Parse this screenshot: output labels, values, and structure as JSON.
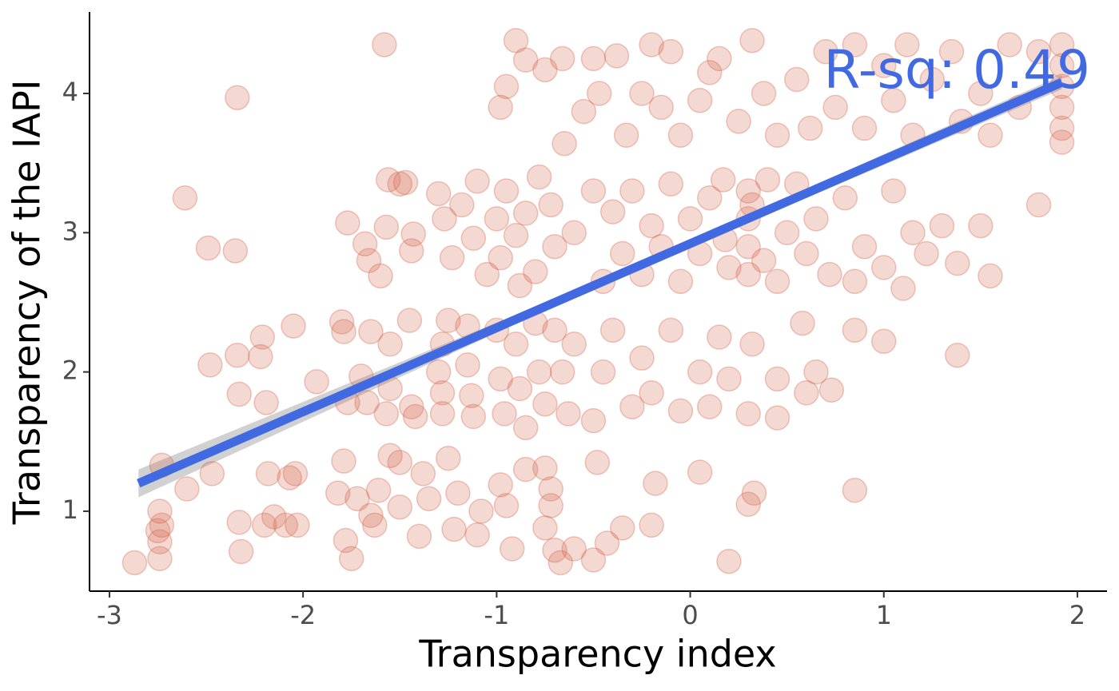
{
  "chart_data": {
    "type": "scatter",
    "x_label": "Transparency index",
    "y_label": "Transparency of the IAPI",
    "annotation": "R-sq: 0.49",
    "xlim": [
      -3.103,
      2.153
    ],
    "ylim": [
      0.426,
      4.585
    ],
    "xticks": [
      -3,
      -2,
      -1,
      0,
      1,
      2
    ],
    "yticks": [
      1,
      2,
      3,
      4
    ],
    "grid": false,
    "point_color": "#d4634a",
    "fit_color": "#4169e1",
    "band_color": "#bdbdbd",
    "x": [
      -2.87,
      -2.74,
      -2.74,
      -2.75,
      -2.73,
      -2.74,
      -2.73,
      -2.6,
      -2.47,
      -2.33,
      -2.32,
      -2.2,
      -2.15,
      -2.18,
      -2.07,
      -2.03,
      -2.04,
      -2.09,
      -2.48,
      -2.33,
      -2.34,
      -2.22,
      -2.21,
      -2.19,
      -2.05,
      -1.93,
      -2.34,
      -2.49,
      -2.35,
      -2.61,
      -1.58,
      -1.8,
      -1.79,
      -1.77,
      -1.7,
      -1.67,
      -1.65,
      -1.79,
      -1.78,
      -1.75,
      -1.82,
      -1.72,
      -1.65,
      -1.63,
      -1.61,
      -1.77,
      -1.68,
      -1.66,
      -1.6,
      -1.57,
      -1.56,
      -1.47,
      -1.43,
      -1.44,
      -1.5,
      -1.55,
      -1.55,
      -1.57,
      -1.55,
      -1.5,
      -1.5,
      -1.45,
      -1.44,
      -1.42,
      -1.4,
      -1.38,
      -1.35,
      -1.3,
      -1.28,
      -1.28,
      -1.28,
      -1.25,
      -1.25,
      -1.22,
      -1.2,
      -1.15,
      -1.15,
      -1.13,
      -1.12,
      -1.1,
      -1.08,
      -1.3,
      -1.27,
      -1.23,
      -1.18,
      -1.12,
      -1.1,
      -1.05,
      -1.0,
      -0.98,
      -0.95,
      -0.9,
      -0.88,
      -0.85,
      -0.8,
      -0.78,
      -0.72,
      -0.7,
      -1.0,
      -0.98,
      -0.96,
      -0.9,
      -0.88,
      -0.85,
      -0.8,
      -0.78,
      -0.75,
      -0.7,
      -0.66,
      -0.63,
      -0.98,
      -0.95,
      -0.92,
      -0.85,
      -0.75,
      -0.72,
      -0.72,
      -0.75,
      -0.7,
      -0.67,
      -0.6,
      -0.5,
      -0.48,
      -0.43,
      -0.35,
      -0.2,
      -0.18,
      -0.98,
      -0.95,
      -0.9,
      -0.85,
      -0.75,
      -0.66,
      -0.65,
      -0.55,
      -0.5,
      -0.47,
      -0.38,
      -0.33,
      -0.25,
      -0.2,
      -0.15,
      -0.1,
      -0.05,
      0.05,
      0.1,
      0.15,
      0.25,
      0.32,
      0.38,
      0.45,
      0.55,
      0.62,
      0.7,
      0.75,
      0.85,
      0.9,
      1.0,
      1.05,
      1.12,
      1.15,
      1.25,
      1.35,
      1.4,
      1.5,
      1.55,
      1.65,
      1.7,
      1.8,
      1.92,
      1.92,
      1.92,
      1.92,
      1.92,
      1.92,
      1.8,
      -0.6,
      -0.5,
      -0.45,
      -0.4,
      -0.35,
      -0.3,
      -0.25,
      -0.2,
      -0.15,
      -0.1,
      -0.05,
      0.0,
      0.05,
      0.1,
      0.17,
      0.18,
      0.2,
      0.3,
      0.3,
      0.3,
      0.3,
      0.32,
      0.38,
      0.4,
      0.45,
      0.5,
      0.55,
      0.6,
      0.65,
      0.72,
      0.8,
      0.85,
      0.9,
      1.0,
      1.05,
      1.1,
      1.15,
      1.22,
      1.3,
      1.38,
      1.5,
      1.55,
      -0.6,
      -0.5,
      -0.45,
      -0.4,
      -0.3,
      -0.25,
      -0.2,
      -0.1,
      -0.05,
      0.05,
      0.1,
      0.15,
      0.2,
      0.3,
      0.32,
      0.45,
      0.45,
      0.58,
      0.6,
      0.65,
      0.73,
      0.85,
      1.0,
      1.38,
      0.05,
      0.2,
      0.3,
      0.33,
      0.85
    ],
    "y": [
      0.63,
      0.66,
      0.78,
      0.86,
      0.9,
      1.0,
      1.33,
      1.16,
      1.27,
      0.92,
      0.71,
      0.9,
      0.96,
      1.27,
      1.24,
      0.9,
      1.27,
      0.9,
      2.05,
      1.84,
      2.12,
      2.11,
      2.25,
      1.78,
      2.33,
      1.93,
      3.97,
      2.89,
      2.87,
      3.25,
      4.35,
      2.36,
      2.29,
      1.78,
      1.97,
      1.78,
      2.29,
      1.36,
      0.79,
      0.66,
      1.13,
      1.09,
      0.97,
      0.9,
      1.15,
      3.07,
      2.92,
      2.8,
      2.69,
      3.04,
      3.38,
      3.36,
      2.99,
      2.87,
      3.35,
      2.2,
      1.88,
      1.7,
      1.4,
      1.35,
      1.03,
      2.37,
      1.75,
      1.68,
      0.82,
      1.27,
      1.09,
      2.0,
      1.7,
      1.85,
      2.2,
      2.37,
      1.38,
      0.87,
      1.13,
      2.33,
      2.05,
      1.83,
      1.68,
      0.83,
      1.0,
      3.28,
      3.1,
      2.82,
      3.2,
      2.96,
      3.37,
      2.7,
      3.1,
      2.82,
      3.3,
      2.98,
      2.62,
      3.14,
      2.72,
      3.4,
      3.2,
      2.9,
      2.3,
      1.95,
      1.7,
      2.2,
      1.88,
      1.6,
      2.35,
      2.0,
      1.77,
      2.3,
      2.0,
      1.7,
      1.19,
      1.04,
      0.73,
      1.3,
      1.31,
      1.16,
      1.04,
      0.88,
      0.72,
      0.63,
      0.73,
      0.65,
      1.35,
      0.77,
      0.88,
      0.9,
      1.2,
      3.9,
      4.05,
      4.38,
      4.24,
      4.17,
      4.25,
      3.64,
      3.87,
      4.25,
      4.0,
      4.27,
      3.7,
      4.0,
      4.35,
      3.9,
      4.3,
      3.7,
      3.95,
      4.15,
      4.25,
      3.8,
      4.38,
      4.0,
      3.7,
      4.1,
      3.75,
      4.3,
      3.9,
      4.35,
      3.75,
      4.2,
      3.95,
      4.35,
      3.7,
      4.1,
      4.3,
      3.8,
      4.0,
      3.7,
      4.35,
      3.9,
      4.3,
      4.35,
      4.2,
      4.05,
      3.9,
      3.75,
      3.65,
      3.2,
      3.0,
      3.3,
      2.65,
      3.15,
      2.85,
      3.3,
      2.7,
      3.05,
      2.9,
      3.35,
      2.65,
      3.1,
      2.85,
      3.25,
      3.38,
      2.95,
      2.75,
      3.3,
      3.1,
      2.9,
      2.7,
      3.2,
      2.8,
      3.38,
      2.65,
      3.0,
      3.35,
      2.85,
      3.1,
      2.7,
      3.25,
      2.65,
      2.9,
      2.75,
      3.3,
      2.6,
      3.0,
      2.85,
      3.05,
      2.78,
      3.05,
      2.69,
      2.2,
      1.65,
      2.0,
      2.3,
      1.75,
      2.1,
      1.85,
      2.3,
      1.72,
      2.0,
      1.75,
      2.25,
      1.95,
      1.7,
      2.2,
      1.95,
      1.67,
      2.35,
      1.85,
      2.0,
      1.87,
      2.3,
      2.22,
      2.12,
      1.28,
      0.64,
      1.05,
      1.13,
      1.15
    ],
    "fit": {
      "x": [
        -2.85,
        -0.5,
        1.92
      ],
      "y": [
        1.2,
        2.62,
        4.08
      ],
      "lower": [
        1.1,
        2.6,
        4.03
      ],
      "upper": [
        1.3,
        2.64,
        4.13
      ]
    }
  }
}
